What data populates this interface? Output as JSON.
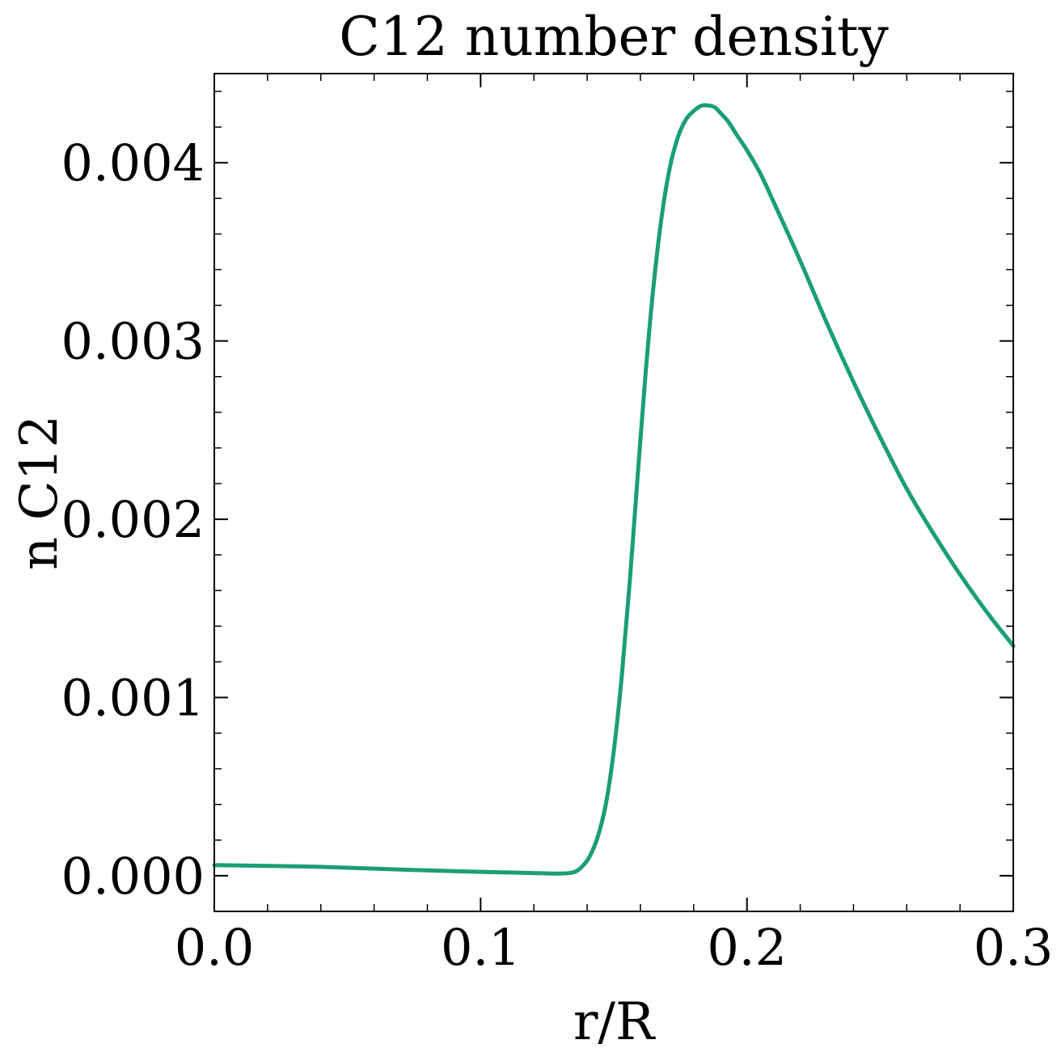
{
  "chart_data": {
    "type": "line",
    "title": "C12 number density",
    "xlabel": "r/R",
    "ylabel": "n C12",
    "xlim": [
      0.0,
      0.3
    ],
    "ylim": [
      -0.0002,
      0.0045
    ],
    "xticks": [
      0.0,
      0.1,
      0.2,
      0.3
    ],
    "xtick_labels": [
      "0.0",
      "0.1",
      "0.2",
      "0.3"
    ],
    "yticks": [
      0.0,
      0.001,
      0.002,
      0.003,
      0.004
    ],
    "ytick_labels": [
      "0.000",
      "0.001",
      "0.002",
      "0.003",
      "0.004"
    ],
    "grid": false,
    "ticks_direction": "in",
    "series": [
      {
        "color": "#1b9e77",
        "x": [
          0.0,
          0.02,
          0.04,
          0.06,
          0.08,
          0.1,
          0.12,
          0.13,
          0.135,
          0.138,
          0.141,
          0.144,
          0.147,
          0.15,
          0.153,
          0.156,
          0.159,
          0.162,
          0.165,
          0.168,
          0.171,
          0.174,
          0.177,
          0.18,
          0.183,
          0.186,
          0.188,
          0.19,
          0.193,
          0.196,
          0.2,
          0.205,
          0.21,
          0.22,
          0.23,
          0.24,
          0.25,
          0.26,
          0.27,
          0.28,
          0.29,
          0.3
        ],
        "y": [
          6e-05,
          5.5e-05,
          5e-05,
          4e-05,
          3e-05,
          2.2e-05,
          1.5e-05,
          1.2e-05,
          2e-05,
          5e-05,
          0.00011,
          0.00022,
          0.0004,
          0.0007,
          0.00112,
          0.00165,
          0.00225,
          0.00283,
          0.00332,
          0.0037,
          0.00397,
          0.00414,
          0.00424,
          0.00429,
          0.00432,
          0.00432,
          0.00431,
          0.00428,
          0.00423,
          0.00416,
          0.00407,
          0.00394,
          0.00378,
          0.00345,
          0.0031,
          0.00277,
          0.00246,
          0.00217,
          0.00192,
          0.00169,
          0.00148,
          0.00129
        ]
      }
    ]
  }
}
